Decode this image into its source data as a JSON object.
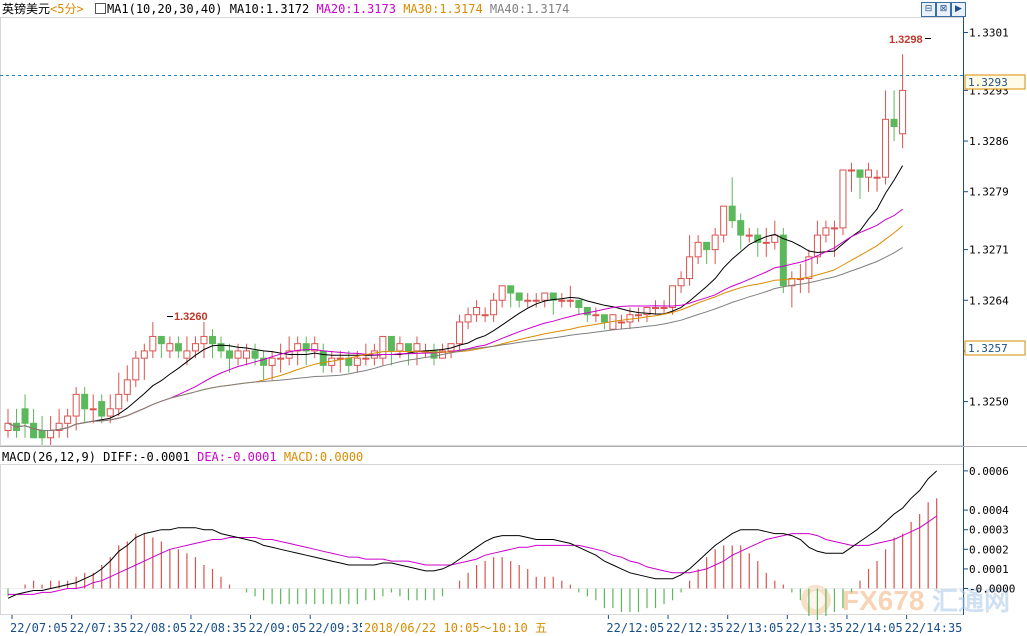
{
  "header": {
    "symbol": "英镑美元",
    "period": "<5分>",
    "ma_caption": "MA1(10,20,30,40)",
    "ma10": "MA10:1.3172",
    "ma20": "MA20:1.3173",
    "ma30": "MA30:1.3174",
    "ma40": "MA40:1.3174"
  },
  "toolbar": {
    "btn1": "⊟",
    "btn2": "⊠",
    "btn3": "▶"
  },
  "macd_header": {
    "caption": "MACD(26,12,9)",
    "diff": "DIFF:-0.0001",
    "dea": "DEA:-0.0001",
    "macd": "MACD:0.0000"
  },
  "overlay": {
    "date_range": "2018/06/22 10:05～10:10 五"
  },
  "watermark": {
    "brand": "FX678",
    "cn": "汇通网"
  },
  "colors": {
    "up": "#d9534f",
    "down": "#5cb85c",
    "ma10": "#000000",
    "ma20": "#cc00cc",
    "ma30": "#d98c00",
    "ma40": "#808080",
    "dea": "#cc00cc",
    "diff": "#000000",
    "axis_blue": "#1a4f8a",
    "price_box": "#d98c00"
  },
  "chart_data": [
    {
      "type": "candlestick",
      "ylim": [
        1.3244,
        1.3303
      ],
      "y_ticks": [
        1.3301,
        1.3293,
        1.3286,
        1.3279,
        1.3271,
        1.3264,
        1.3257,
        1.325
      ],
      "x_ticks": [
        "22/07:05",
        "22/07:35",
        "22/08:05",
        "22/08:35",
        "22/09:05",
        "22/09:35",
        "22/12:05",
        "22/12:35",
        "22/13:05",
        "22/13:35",
        "22/14:05",
        "22/14:35"
      ],
      "annotations": {
        "high_label": "1.3298",
        "low_label": "1.3260",
        "last_price": "1.3293",
        "marker_price": "1.3257"
      },
      "candles": [
        [
          1.3246,
          1.3247,
          1.3249,
          1.3245
        ],
        [
          1.3247,
          1.3246,
          1.3249,
          1.3245
        ],
        [
          1.3249,
          1.3247,
          1.3251,
          1.3245
        ],
        [
          1.3247,
          1.3245,
          1.3249,
          1.3245
        ],
        [
          1.3246,
          1.3245,
          1.3248,
          1.3244
        ],
        [
          1.3245,
          1.3246,
          1.3248,
          1.3244
        ],
        [
          1.3246,
          1.3247,
          1.3249,
          1.3245
        ],
        [
          1.3247,
          1.3248,
          1.3249,
          1.3245
        ],
        [
          1.3248,
          1.3251,
          1.3252,
          1.3246
        ],
        [
          1.3251,
          1.3249,
          1.3252,
          1.3247
        ],
        [
          1.3249,
          1.3249,
          1.3251,
          1.3247
        ],
        [
          1.325,
          1.3248,
          1.3251,
          1.3247
        ],
        [
          1.3248,
          1.3249,
          1.3251,
          1.3247
        ],
        [
          1.3249,
          1.3251,
          1.3254,
          1.3248
        ],
        [
          1.3251,
          1.3253,
          1.3255,
          1.325
        ],
        [
          1.3253,
          1.3256,
          1.3257,
          1.3252
        ],
        [
          1.3256,
          1.3257,
          1.3258,
          1.3253
        ],
        [
          1.3257,
          1.3259,
          1.3261,
          1.3256
        ],
        [
          1.3259,
          1.3258,
          1.3259,
          1.3256
        ],
        [
          1.3257,
          1.3258,
          1.3259,
          1.3256
        ],
        [
          1.3258,
          1.3257,
          1.3259,
          1.3256
        ],
        [
          1.3256,
          1.3257,
          1.3259,
          1.3255
        ],
        [
          1.3257,
          1.3258,
          1.3259,
          1.3256
        ],
        [
          1.3258,
          1.3259,
          1.3261,
          1.3256
        ],
        [
          1.3259,
          1.3258,
          1.326,
          1.3256
        ],
        [
          1.3258,
          1.3257,
          1.3259,
          1.3256
        ],
        [
          1.3257,
          1.3256,
          1.3258,
          1.3254
        ],
        [
          1.3256,
          1.3257,
          1.3258,
          1.3255
        ],
        [
          1.3256,
          1.3257,
          1.3258,
          1.3255
        ],
        [
          1.3257,
          1.3256,
          1.3258,
          1.3255
        ],
        [
          1.3256,
          1.3255,
          1.3257,
          1.3253
        ],
        [
          1.3255,
          1.3256,
          1.3257,
          1.3253
        ],
        [
          1.3256,
          1.3256,
          1.3258,
          1.3254
        ],
        [
          1.3256,
          1.3257,
          1.3259,
          1.3255
        ],
        [
          1.3257,
          1.3258,
          1.3259,
          1.3255
        ],
        [
          1.3258,
          1.3257,
          1.3259,
          1.3255
        ],
        [
          1.3257,
          1.3258,
          1.3259,
          1.3256
        ],
        [
          1.3257,
          1.3255,
          1.3258,
          1.3254
        ],
        [
          1.3255,
          1.3256,
          1.3257,
          1.3254
        ],
        [
          1.3256,
          1.3256,
          1.3257,
          1.3254
        ],
        [
          1.3256,
          1.3255,
          1.3257,
          1.3254
        ],
        [
          1.3255,
          1.3256,
          1.3257,
          1.3254
        ],
        [
          1.3256,
          1.3256,
          1.3258,
          1.3255
        ],
        [
          1.3256,
          1.3257,
          1.3258,
          1.3255
        ],
        [
          1.3256,
          1.3259,
          1.3259,
          1.3255
        ],
        [
          1.3259,
          1.3257,
          1.3259,
          1.3255
        ],
        [
          1.3257,
          1.3258,
          1.3259,
          1.3256
        ],
        [
          1.3258,
          1.3257,
          1.3258,
          1.3255
        ],
        [
          1.3257,
          1.3258,
          1.3259,
          1.3255
        ],
        [
          1.3257,
          1.3257,
          1.3258,
          1.3256
        ],
        [
          1.3257,
          1.3256,
          1.3258,
          1.3255
        ],
        [
          1.3256,
          1.3257,
          1.3258,
          1.3256
        ],
        [
          1.3257,
          1.3258,
          1.3258,
          1.3256
        ],
        [
          1.3258,
          1.3261,
          1.3262,
          1.3257
        ],
        [
          1.3261,
          1.3262,
          1.3263,
          1.326
        ],
        [
          1.3262,
          1.3263,
          1.3264,
          1.3261
        ],
        [
          1.3262,
          1.3262,
          1.3263,
          1.3261
        ],
        [
          1.3262,
          1.3264,
          1.3265,
          1.3261
        ],
        [
          1.3264,
          1.3266,
          1.3266,
          1.3263
        ],
        [
          1.3266,
          1.3265,
          1.3266,
          1.3263
        ],
        [
          1.3265,
          1.3264,
          1.3265,
          1.3263
        ],
        [
          1.3264,
          1.3264,
          1.3265,
          1.3263
        ],
        [
          1.3264,
          1.3264,
          1.3265,
          1.3263
        ],
        [
          1.3264,
          1.3265,
          1.3265,
          1.3263
        ],
        [
          1.3265,
          1.3264,
          1.3265,
          1.3262
        ],
        [
          1.3264,
          1.3264,
          1.3265,
          1.3263
        ],
        [
          1.3264,
          1.3264,
          1.3266,
          1.3263
        ],
        [
          1.3264,
          1.3263,
          1.3264,
          1.3262
        ],
        [
          1.3263,
          1.3262,
          1.3263,
          1.3261
        ],
        [
          1.3262,
          1.3262,
          1.3263,
          1.3261
        ],
        [
          1.3262,
          1.3261,
          1.3262,
          1.326
        ],
        [
          1.326,
          1.3262,
          1.3262,
          1.326
        ],
        [
          1.3261,
          1.3261,
          1.3262,
          1.326
        ],
        [
          1.3261,
          1.3262,
          1.3263,
          1.326
        ],
        [
          1.3262,
          1.3262,
          1.3263,
          1.3261
        ],
        [
          1.3262,
          1.3263,
          1.3263,
          1.3261
        ],
        [
          1.3263,
          1.3263,
          1.3264,
          1.3262
        ],
        [
          1.3263,
          1.3263,
          1.3264,
          1.3262
        ],
        [
          1.3263,
          1.3266,
          1.3266,
          1.3262
        ],
        [
          1.3266,
          1.3267,
          1.3268,
          1.3265
        ],
        [
          1.3267,
          1.327,
          1.3273,
          1.3266
        ],
        [
          1.327,
          1.3272,
          1.3273,
          1.3269
        ],
        [
          1.3272,
          1.3271,
          1.3272,
          1.3269
        ],
        [
          1.3271,
          1.3273,
          1.3274,
          1.3269
        ],
        [
          1.3273,
          1.3277,
          1.3277,
          1.3272
        ],
        [
          1.3277,
          1.3275,
          1.3281,
          1.3274
        ],
        [
          1.3275,
          1.3273,
          1.3276,
          1.3271
        ],
        [
          1.3273,
          1.3273,
          1.3274,
          1.3272
        ],
        [
          1.3273,
          1.3272,
          1.3274,
          1.327
        ],
        [
          1.3272,
          1.3272,
          1.3274,
          1.327
        ],
        [
          1.3272,
          1.3273,
          1.3275,
          1.3271
        ],
        [
          1.3273,
          1.3266,
          1.3274,
          1.3265
        ],
        [
          1.3266,
          1.3267,
          1.3268,
          1.3263
        ],
        [
          1.3267,
          1.3267,
          1.3269,
          1.3265
        ],
        [
          1.3267,
          1.327,
          1.3271,
          1.3265
        ],
        [
          1.327,
          1.3273,
          1.3275,
          1.3269
        ],
        [
          1.3273,
          1.3274,
          1.3275,
          1.3272
        ],
        [
          1.3274,
          1.3274,
          1.3275,
          1.327
        ],
        [
          1.3274,
          1.3282,
          1.3282,
          1.3273
        ],
        [
          1.3282,
          1.3282,
          1.3283,
          1.3279
        ],
        [
          1.3282,
          1.3281,
          1.3282,
          1.3278
        ],
        [
          1.3281,
          1.3282,
          1.3283,
          1.3279
        ],
        [
          1.3281,
          1.3281,
          1.3282,
          1.3279
        ],
        [
          1.3281,
          1.3289,
          1.3293,
          1.328
        ],
        [
          1.3289,
          1.3288,
          1.3293,
          1.3286
        ],
        [
          1.3287,
          1.3293,
          1.3298,
          1.3285
        ]
      ]
    },
    {
      "type": "line",
      "title": "MACD(26,12,9)",
      "ylim": [
        -0.00013,
        0.00063
      ],
      "y_ticks": [
        0.0006,
        0.0004,
        0.0003,
        0.0002,
        0.0001,
        -0.0
      ],
      "series": [
        {
          "name": "DIFF",
          "values": [
            -5e-05,
            -3e-05,
            -2e-05,
            -1e-05,
            -1e-05,
            0.0,
            1e-05,
            2e-05,
            3e-05,
            5e-05,
            7e-05,
            0.0001,
            0.00014,
            0.00019,
            0.00022,
            0.00026,
            0.00028,
            0.00029,
            0.0003,
            0.0003,
            0.00031,
            0.00031,
            0.00031,
            0.0003,
            0.0003,
            0.00028,
            0.00027,
            0.00026,
            0.00025,
            0.00024,
            0.00022,
            0.00021,
            0.0002,
            0.00019,
            0.00018,
            0.00017,
            0.00016,
            0.00015,
            0.00014,
            0.00013,
            0.00012,
            0.00012,
            0.00012,
            0.00012,
            0.00013,
            0.00013,
            0.00012,
            0.00011,
            0.0001,
            9e-05,
            9e-05,
            0.0001,
            0.00012,
            0.00015,
            0.00018,
            0.00021,
            0.00024,
            0.00026,
            0.00027,
            0.00027,
            0.00027,
            0.00026,
            0.00025,
            0.00025,
            0.00025,
            0.00024,
            0.00023,
            0.00021,
            0.00019,
            0.00017,
            0.00014,
            0.00012,
            0.0001,
            8e-05,
            7e-05,
            6e-05,
            5e-05,
            5e-05,
            5e-05,
            7e-05,
            0.0001,
            0.00014,
            0.00018,
            0.00022,
            0.00025,
            0.00028,
            0.0003,
            0.0003,
            0.0003,
            0.00029,
            0.00028,
            0.00028,
            0.00027,
            0.00025,
            0.00021,
            0.00019,
            0.00018,
            0.00018,
            0.00018,
            0.00021,
            0.00024,
            0.00027,
            0.0003,
            0.00034,
            0.00038,
            0.00041,
            0.00046,
            0.0005,
            0.00056,
            0.0006
          ]
        },
        {
          "name": "DEA",
          "values": [
            -3e-05,
            -3e-05,
            -3e-05,
            -3e-05,
            -2e-05,
            -2e-05,
            -1e-05,
            0.0,
            0.0,
            1e-05,
            3e-05,
            4e-05,
            6e-05,
            8e-05,
            0.0001,
            0.00012,
            0.00014,
            0.00016,
            0.00018,
            0.0002,
            0.00021,
            0.00022,
            0.00023,
            0.00024,
            0.00025,
            0.00025,
            0.00026,
            0.00026,
            0.00026,
            0.00026,
            0.00025,
            0.00025,
            0.00024,
            0.00023,
            0.00022,
            0.00021,
            0.0002,
            0.00019,
            0.00018,
            0.00017,
            0.00016,
            0.00016,
            0.00015,
            0.00015,
            0.00015,
            0.00014,
            0.00014,
            0.00014,
            0.00013,
            0.00012,
            0.00012,
            0.00012,
            0.00012,
            0.00013,
            0.00014,
            0.00015,
            0.00017,
            0.00018,
            0.00019,
            0.0002,
            0.00021,
            0.00021,
            0.00022,
            0.00022,
            0.00022,
            0.00022,
            0.00022,
            0.00022,
            0.00021,
            0.0002,
            0.00019,
            0.00017,
            0.00016,
            0.00014,
            0.00013,
            0.00011,
            0.0001,
            9e-05,
            8e-05,
            8e-05,
            8e-05,
            9e-05,
            0.0001,
            0.00012,
            0.00014,
            0.00017,
            0.00019,
            0.00021,
            0.00023,
            0.00025,
            0.00026,
            0.00027,
            0.00028,
            0.00028,
            0.00028,
            0.00027,
            0.00025,
            0.00024,
            0.00023,
            0.00022,
            0.00022,
            0.00022,
            0.00023,
            0.00024,
            0.00025,
            0.00027,
            0.00029,
            0.00031,
            0.00034,
            0.00037
          ]
        }
      ]
    }
  ]
}
